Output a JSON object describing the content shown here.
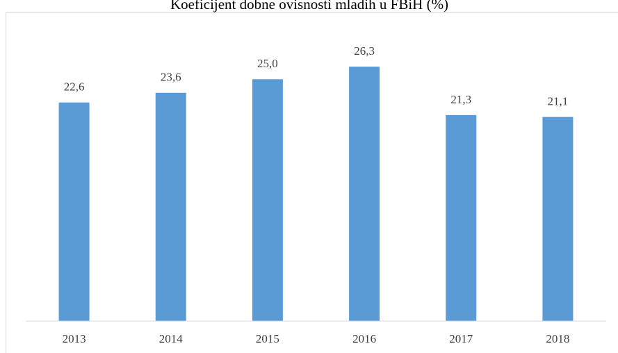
{
  "chart_data": {
    "type": "bar",
    "title": "Koeficijent dobne ovisnosti mladih u FBiH (%)",
    "categories": [
      "2013",
      "2014",
      "2015",
      "2016",
      "2017",
      "2018"
    ],
    "values": [
      22.6,
      23.6,
      25.0,
      26.3,
      21.3,
      21.1
    ],
    "value_labels": [
      "22,6",
      "23,6",
      "25,0",
      "26,3",
      "21,3",
      "21,1"
    ],
    "color": "#5b9bd5",
    "ylim": [
      0,
      30
    ]
  }
}
